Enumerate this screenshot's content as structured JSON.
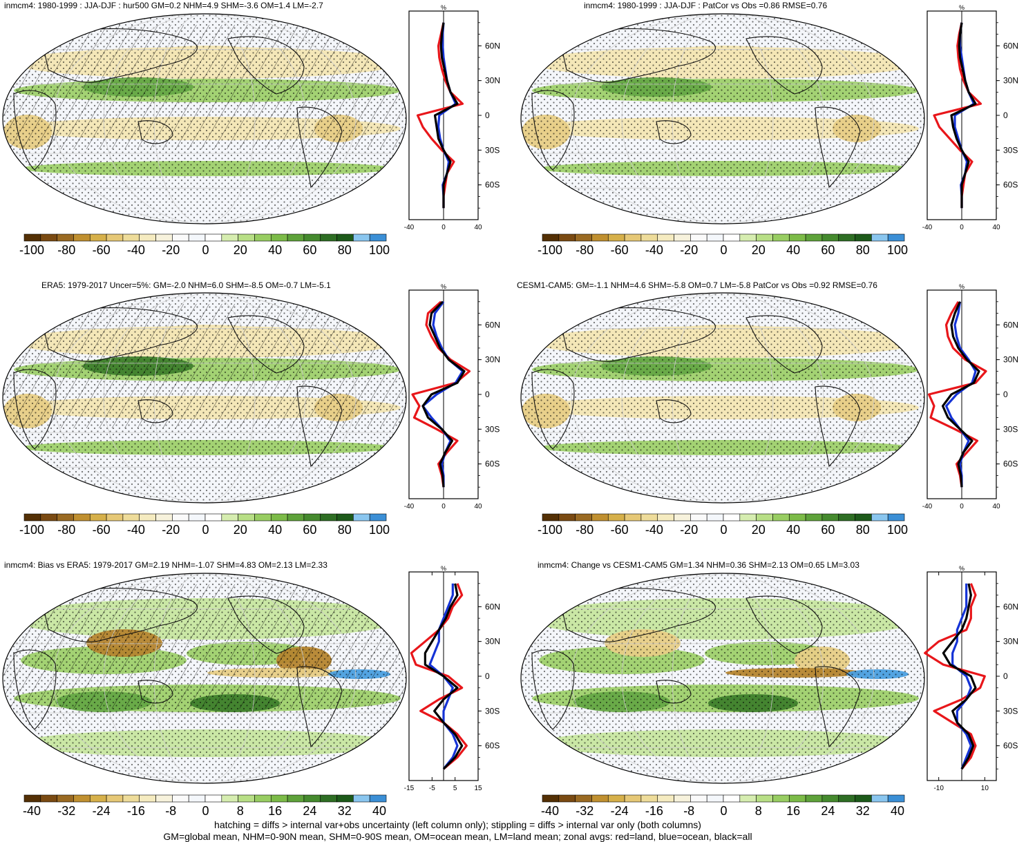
{
  "panels": [
    {
      "title": "inmcm4: 1980-1999 : JJA-DJF : hur500 GM=0.2 NHM=4.9 SHM=-3.6 OM=1.4 LM=-2.7"
    },
    {
      "title": "inmcm4: 1980-1999 : JJA-DJF : PatCor vs Obs =0.86 RMSE=0.76"
    },
    {
      "title": "ERA5: 1979-2017 Uncer=5%: GM=-2.0 NHM=6.0 SHM=-8.5 OM=-0.7 LM=-5.1"
    },
    {
      "title": "CESM1-CAM5: GM=-1.1 NHM=4.6 SHM=-5.8 OM=0.7 LM=-5.8 PatCor vs Obs =0.92 RMSE=0.76"
    },
    {
      "title": "inmcm4: Bias vs ERA5: 1979-2017 GM=2.19 NHM=-1.07 SHM=4.83 OM=2.13 LM=2.33"
    },
    {
      "title": "inmcm4: Change vs CESM1-CAM5 GM=1.34 NHM=0.36 SHM=2.13 OM=0.65 LM=3.03"
    }
  ],
  "zonal_axis": {
    "unit": "%",
    "lat_labels": [
      "60N",
      "30N",
      "0",
      "30S",
      "60S"
    ],
    "x_ticks_rows": [
      [
        "-40",
        "0",
        "40"
      ],
      [
        "-40",
        "0",
        "40"
      ],
      [
        "-15",
        "-5",
        "5",
        "15"
      ]
    ],
    "x_ticks_rows_right": [
      [
        "-40",
        "0",
        "40"
      ],
      [
        "-40",
        "0",
        "40"
      ],
      [
        "-10",
        "10"
      ]
    ]
  },
  "colorbars": {
    "rows12": {
      "labels": [
        "-100",
        "-80",
        "-60",
        "-40",
        "-20",
        "0",
        "20",
        "40",
        "60",
        "80",
        "100"
      ]
    },
    "row3": {
      "labels": [
        "-40",
        "-32",
        "-24",
        "-16",
        "-8",
        "0",
        "8",
        "16",
        "24",
        "32",
        "40"
      ]
    },
    "colors": [
      "#543005",
      "#7a4a12",
      "#9a6a22",
      "#c09030",
      "#d6b04a",
      "#e6c876",
      "#eedc9a",
      "#f5ebc0",
      "#f7f2dc",
      "#fafafa",
      "#f4f7fb",
      "#ffffff",
      "#d6edb0",
      "#b8df86",
      "#98cd62",
      "#7cbb48",
      "#5ea23a",
      "#458a2e",
      "#2e6e24",
      "#1d5a1a",
      "#8ac6ef",
      "#3b8fd6"
    ]
  },
  "footer": {
    "line1": "hatching = diffs > internal var+obs uncertainty (left column only); stippling = diffs > internal var only (both columns)",
    "line2": "GM=global mean, NHM=0-90N mean, SHM=0-90S mean, OM=ocean mean, LM=land mean; zonal avgs: red=land, blue=ocean, black=all"
  },
  "chart_data": [
    {
      "type": "line",
      "title": "inmcm4: 1980-1999 : JJA-DJF : hur500 GM=0.2 NHM=4.9 SHM=-3.6 OM=1.4 LM=-2.7",
      "xlabel": "%",
      "xlim": [
        -40,
        40
      ],
      "ylim": [
        -90,
        90
      ],
      "y": [
        80,
        70,
        60,
        50,
        40,
        30,
        20,
        10,
        0,
        -10,
        -20,
        -30,
        -40,
        -50,
        -60,
        -70,
        -80
      ],
      "series": [
        {
          "name": "land",
          "color": "#e8161a",
          "values": [
            0,
            -3,
            -6,
            -5,
            -2,
            2,
            8,
            22,
            -30,
            -24,
            -14,
            -2,
            12,
            4,
            2,
            0,
            0
          ]
        },
        {
          "name": "ocean",
          "color": "#1533d6",
          "values": [
            0,
            -1,
            -1,
            0,
            2,
            4,
            8,
            14,
            -5,
            -6,
            -4,
            0,
            6,
            4,
            -1,
            0,
            0
          ]
        },
        {
          "name": "all",
          "color": "#000000",
          "values": [
            0,
            -2,
            -3,
            -2,
            1,
            4,
            8,
            16,
            -10,
            -8,
            -6,
            0,
            8,
            4,
            0,
            0,
            0
          ]
        }
      ]
    },
    {
      "type": "line",
      "title": "inmcm4: 1980-1999 : JJA-DJF : PatCor vs Obs =0.86 RMSE=0.76",
      "xlabel": "%",
      "xlim": [
        -40,
        40
      ],
      "ylim": [
        -90,
        90
      ],
      "y": [
        80,
        70,
        60,
        50,
        40,
        30,
        20,
        10,
        0,
        -10,
        -20,
        -30,
        -40,
        -50,
        -60,
        -70,
        -80
      ],
      "series": [
        {
          "name": "land",
          "color": "#e8161a",
          "values": [
            0,
            -3,
            -5,
            -4,
            -2,
            2,
            8,
            22,
            -32,
            -26,
            -14,
            -2,
            12,
            4,
            2,
            0,
            0
          ]
        },
        {
          "name": "ocean",
          "color": "#1533d6",
          "values": [
            0,
            -2,
            -2,
            0,
            2,
            4,
            8,
            14,
            -8,
            -8,
            -4,
            0,
            6,
            4,
            -1,
            0,
            0
          ]
        },
        {
          "name": "all",
          "color": "#000000",
          "values": [
            0,
            -2,
            -3,
            -2,
            1,
            4,
            8,
            16,
            -12,
            -10,
            -6,
            0,
            8,
            4,
            0,
            0,
            0
          ]
        }
      ]
    },
    {
      "type": "line",
      "title": "ERA5: 1979-2017 Uncer=5%: GM=-2.0 NHM=6.0 SHM=-8.5 OM=-0.7 LM=-5.1",
      "xlabel": "%",
      "xlim": [
        -40,
        40
      ],
      "ylim": [
        -90,
        90
      ],
      "y": [
        80,
        70,
        60,
        50,
        40,
        30,
        20,
        10,
        0,
        -10,
        -20,
        -30,
        -40,
        -50,
        -60,
        -70,
        -80
      ],
      "series": [
        {
          "name": "land",
          "color": "#e8161a",
          "values": [
            -3,
            -18,
            -20,
            -14,
            -6,
            8,
            30,
            14,
            -36,
            -28,
            -34,
            -8,
            16,
            4,
            -6,
            -2,
            0
          ]
        },
        {
          "name": "ocean",
          "color": "#1533d6",
          "values": [
            0,
            -10,
            -12,
            -8,
            -2,
            6,
            22,
            14,
            -8,
            -24,
            -14,
            -2,
            8,
            2,
            -2,
            0,
            0
          ]
        },
        {
          "name": "all",
          "color": "#000000",
          "values": [
            -1,
            -14,
            -16,
            -10,
            -4,
            6,
            24,
            16,
            -14,
            -24,
            -18,
            -2,
            10,
            2,
            -4,
            -1,
            0
          ]
        }
      ]
    },
    {
      "type": "line",
      "title": "CESM1-CAM5: GM=-1.1 NHM=4.6 SHM=-5.8 OM=0.7 LM=-5.8 PatCor vs Obs =0.92 RMSE=0.76",
      "xlabel": "%",
      "xlim": [
        -40,
        40
      ],
      "ylim": [
        -90,
        90
      ],
      "y": [
        80,
        70,
        60,
        50,
        40,
        30,
        20,
        10,
        0,
        -10,
        -20,
        -30,
        -40,
        -50,
        -60,
        -70,
        -80
      ],
      "series": [
        {
          "name": "land",
          "color": "#e8161a",
          "values": [
            -4,
            -12,
            -18,
            -16,
            -10,
            4,
            28,
            16,
            -38,
            -32,
            -36,
            -8,
            18,
            6,
            -6,
            -2,
            0
          ]
        },
        {
          "name": "ocean",
          "color": "#1533d6",
          "values": [
            -2,
            -4,
            -8,
            -6,
            -2,
            8,
            16,
            12,
            -6,
            -18,
            -12,
            -2,
            8,
            2,
            -2,
            0,
            0
          ]
        },
        {
          "name": "all",
          "color": "#000000",
          "values": [
            -2,
            -8,
            -12,
            -10,
            -4,
            6,
            20,
            14,
            -12,
            -22,
            -16,
            -2,
            12,
            2,
            -4,
            -1,
            0
          ]
        }
      ]
    },
    {
      "type": "line",
      "title": "inmcm4: Bias vs ERA5: 1979-2017 GM=2.19 NHM=-1.07 SHM=4.83 OM=2.13 LM=2.33",
      "xlabel": "%",
      "xlim": [
        -15,
        15
      ],
      "ylim": [
        -90,
        90
      ],
      "y": [
        80,
        70,
        60,
        50,
        40,
        30,
        20,
        10,
        0,
        -10,
        -20,
        -30,
        -40,
        -50,
        -60,
        -70,
        -80
      ],
      "series": [
        {
          "name": "land",
          "color": "#e8161a",
          "values": [
            6,
            8,
            4,
            2,
            -2,
            -8,
            -14,
            -12,
            2,
            8,
            -2,
            -10,
            0,
            6,
            10,
            6,
            0
          ]
        },
        {
          "name": "ocean",
          "color": "#1533d6",
          "values": [
            4,
            4,
            2,
            0,
            -2,
            -2,
            -4,
            -6,
            0,
            4,
            2,
            0,
            0,
            4,
            6,
            4,
            0
          ]
        },
        {
          "name": "all",
          "color": "#000000",
          "values": [
            5,
            6,
            3,
            1,
            -2,
            -5,
            -8,
            -8,
            0,
            6,
            0,
            -4,
            0,
            5,
            8,
            5,
            0
          ]
        }
      ]
    },
    {
      "type": "line",
      "title": "inmcm4: Change vs CESM1-CAM5 GM=1.34 NHM=0.36 SHM=2.13 OM=0.65 LM=3.03",
      "xlabel": "%",
      "xlim": [
        -15,
        15
      ],
      "ylim": [
        -90,
        90
      ],
      "y": [
        80,
        70,
        60,
        50,
        40,
        30,
        20,
        10,
        0,
        -10,
        -20,
        -30,
        -40,
        -50,
        -60,
        -70,
        -80
      ],
      "series": [
        {
          "name": "land",
          "color": "#e8161a",
          "values": [
            4,
            6,
            4,
            4,
            2,
            -10,
            -16,
            -8,
            10,
            8,
            0,
            -12,
            -4,
            4,
            6,
            4,
            0
          ]
        },
        {
          "name": "ocean",
          "color": "#1533d6",
          "values": [
            2,
            2,
            2,
            0,
            -2,
            -2,
            -4,
            -4,
            2,
            4,
            2,
            -2,
            -2,
            2,
            4,
            2,
            0
          ]
        },
        {
          "name": "all",
          "color": "#000000",
          "values": [
            3,
            4,
            3,
            2,
            0,
            -4,
            -8,
            -5,
            4,
            6,
            2,
            -4,
            -2,
            3,
            5,
            3,
            0
          ]
        }
      ]
    }
  ]
}
